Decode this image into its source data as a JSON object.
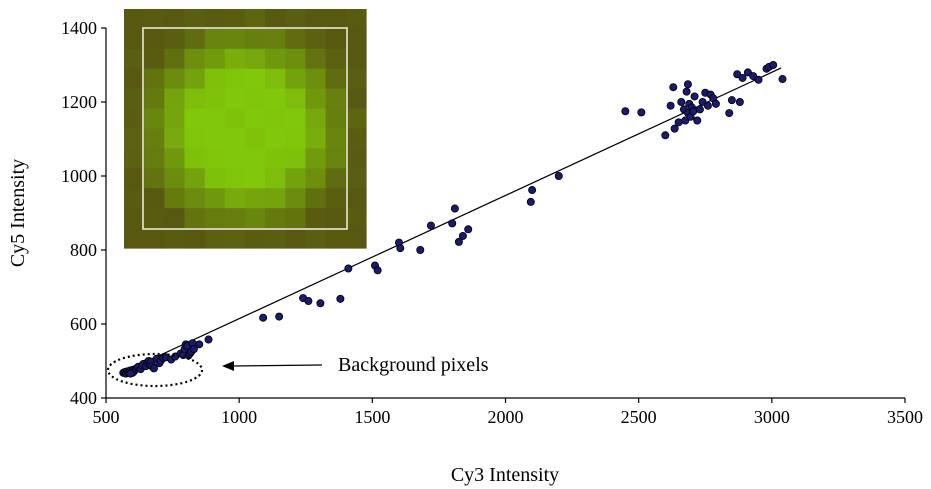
{
  "chart_data": {
    "type": "scatter",
    "title": "",
    "xlabel": "Cy3 Intensity",
    "ylabel": "Cy5 Intensity",
    "xlim": [
      500,
      3500
    ],
    "ylim": [
      400,
      1400
    ],
    "x_ticks": [
      "500",
      "1000",
      "1500",
      "2000",
      "2500",
      "3000",
      "3500"
    ],
    "y_ticks": [
      "400",
      "600",
      "800",
      "1000",
      "1200",
      "1400"
    ],
    "grid": false,
    "legend": "none",
    "point_color": "#1a1a6e",
    "trendline": {
      "x": [
        560,
        3035
      ],
      "y": [
        468,
        1292
      ]
    },
    "annotation": {
      "text": "Background pixels"
    },
    "inset_image": "spot-microarray-pixel-grid",
    "points": [
      [
        565,
        468
      ],
      [
        570,
        470
      ],
      [
        575,
        466
      ],
      [
        580,
        472
      ],
      [
        585,
        468
      ],
      [
        590,
        474
      ],
      [
        595,
        470
      ],
      [
        600,
        476
      ],
      [
        605,
        472
      ],
      [
        610,
        478
      ],
      [
        600,
        468
      ],
      [
        592,
        466
      ],
      [
        615,
        480
      ],
      [
        620,
        484
      ],
      [
        630,
        478
      ],
      [
        635,
        488
      ],
      [
        640,
        492
      ],
      [
        650,
        486
      ],
      [
        655,
        496
      ],
      [
        660,
        500
      ],
      [
        665,
        490
      ],
      [
        670,
        498
      ],
      [
        672,
        486
      ],
      [
        680,
        480
      ],
      [
        690,
        506
      ],
      [
        700,
        494
      ],
      [
        705,
        500
      ],
      [
        715,
        508
      ],
      [
        725,
        510
      ],
      [
        745,
        504
      ],
      [
        760,
        512
      ],
      [
        780,
        520
      ],
      [
        790,
        516
      ],
      [
        795,
        532
      ],
      [
        800,
        545
      ],
      [
        805,
        540
      ],
      [
        810,
        515
      ],
      [
        815,
        520
      ],
      [
        820,
        525
      ],
      [
        825,
        548
      ],
      [
        830,
        532
      ],
      [
        850,
        545
      ],
      [
        885,
        558
      ],
      [
        1090,
        617
      ],
      [
        1150,
        620
      ],
      [
        1240,
        670
      ],
      [
        1260,
        662
      ],
      [
        1305,
        656
      ],
      [
        1380,
        668
      ],
      [
        1410,
        750
      ],
      [
        1510,
        758
      ],
      [
        1520,
        745
      ],
      [
        1600,
        820
      ],
      [
        1605,
        805
      ],
      [
        1680,
        800
      ],
      [
        1720,
        866
      ],
      [
        1800,
        872
      ],
      [
        1810,
        912
      ],
      [
        1825,
        822
      ],
      [
        1840,
        838
      ],
      [
        1860,
        856
      ],
      [
        2095,
        930
      ],
      [
        2100,
        962
      ],
      [
        2200,
        1000
      ],
      [
        2450,
        1175
      ],
      [
        2510,
        1172
      ],
      [
        2600,
        1110
      ],
      [
        2620,
        1190
      ],
      [
        2630,
        1240
      ],
      [
        2635,
        1128
      ],
      [
        2650,
        1145
      ],
      [
        2660,
        1200
      ],
      [
        2670,
        1180
      ],
      [
        2675,
        1150
      ],
      [
        2680,
        1228
      ],
      [
        2685,
        1170
      ],
      [
        2690,
        1195
      ],
      [
        2695,
        1160
      ],
      [
        2700,
        1185
      ],
      [
        2705,
        1175
      ],
      [
        2710,
        1215
      ],
      [
        2720,
        1150
      ],
      [
        2730,
        1180
      ],
      [
        2740,
        1200
      ],
      [
        2750,
        1225
      ],
      [
        2760,
        1190
      ],
      [
        2770,
        1220
      ],
      [
        2780,
        1210
      ],
      [
        2790,
        1195
      ],
      [
        2840,
        1170
      ],
      [
        2850,
        1205
      ],
      [
        2870,
        1275
      ],
      [
        2880,
        1200
      ],
      [
        2890,
        1265
      ],
      [
        2910,
        1280
      ],
      [
        2930,
        1270
      ],
      [
        2950,
        1260
      ],
      [
        2980,
        1290
      ],
      [
        2990,
        1295
      ],
      [
        3005,
        1300
      ],
      [
        3040,
        1262
      ],
      [
        2685,
        1248
      ]
    ]
  }
}
